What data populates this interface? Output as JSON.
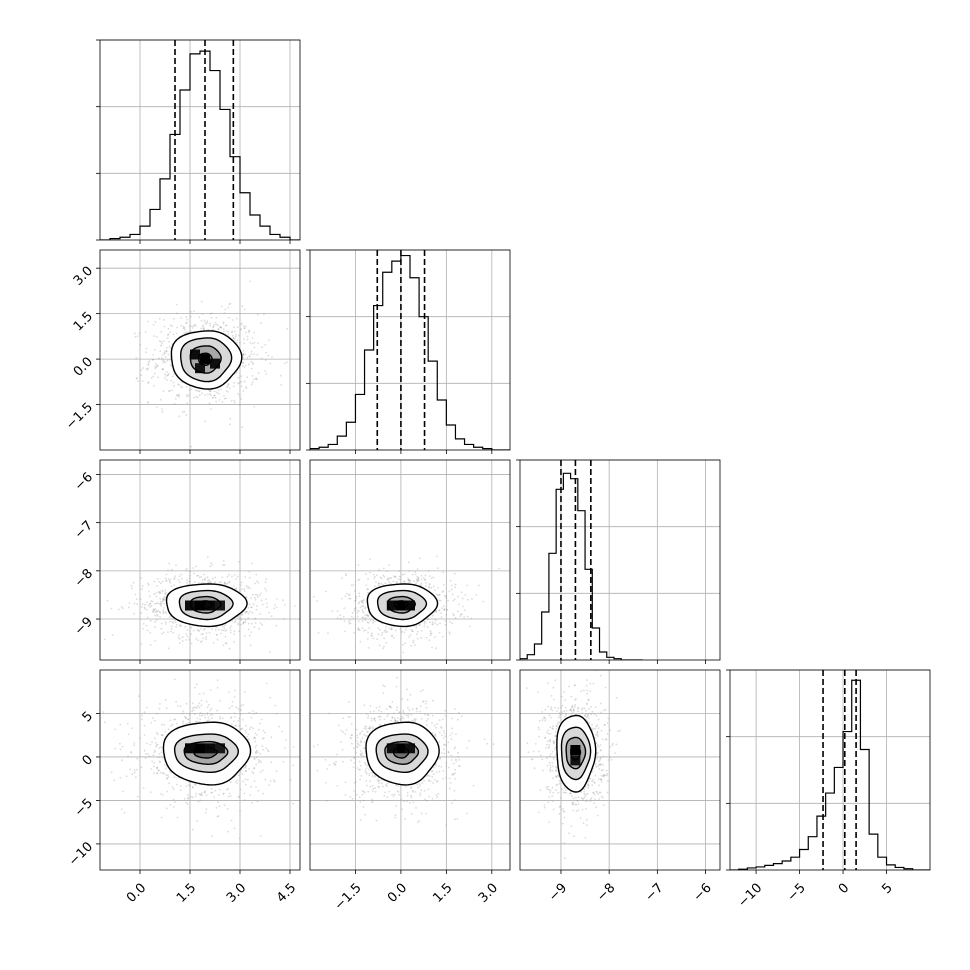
{
  "chart_data": {
    "type": "corner",
    "grid": true,
    "params": [
      {
        "range": [
          -1.2,
          4.8
        ],
        "ticks": [
          0.0,
          1.5,
          3.0,
          4.5
        ],
        "tick_labels": [
          "0.0",
          "1.5",
          "3.0",
          "4.5"
        ],
        "quantiles": [
          1.05,
          1.95,
          2.8
        ],
        "center": 1.95,
        "sigma": 0.85
      },
      {
        "range": [
          -3.0,
          3.6
        ],
        "ticks": [
          -1.5,
          0.0,
          1.5,
          3.0
        ],
        "tick_labels": [
          "−1.5",
          "0.0",
          "1.5",
          "3.0"
        ],
        "quantiles": [
          -0.78,
          0.0,
          0.78
        ],
        "center": 0.0,
        "sigma": 0.78
      },
      {
        "range": [
          -9.85,
          -5.7
        ],
        "ticks": [
          -9,
          -8,
          -7,
          -6
        ],
        "tick_labels": [
          "−9",
          "−8",
          "−7",
          "−6"
        ],
        "quantiles": [
          -9.0,
          -8.7,
          -8.38
        ],
        "center": -8.7,
        "sigma": 0.3
      },
      {
        "range": [
          -13.0,
          10.0
        ],
        "ticks": [
          -10,
          -5,
          0,
          5
        ],
        "tick_labels": [
          "−10",
          "−5",
          "0",
          "5"
        ],
        "quantiles": [
          -2.3,
          0.2,
          1.5
        ],
        "center": 0.5,
        "sigma": 2.2
      }
    ],
    "histograms": [
      {
        "param": 0,
        "bin_edges": [
          -1.2,
          -0.9,
          -0.6,
          -0.3,
          0.0,
          0.3,
          0.6,
          0.9,
          1.2,
          1.5,
          1.8,
          2.1,
          2.4,
          2.7,
          3.0,
          3.3,
          3.6,
          3.9,
          4.2,
          4.5,
          4.8
        ],
        "counts": [
          0,
          0.5,
          1,
          2,
          5,
          11,
          22,
          38,
          54,
          67,
          68,
          61,
          47,
          30,
          17,
          9,
          5,
          2,
          1,
          0
        ],
        "ymax": 72
      },
      {
        "param": 1,
        "bin_edges": [
          -3.0,
          -2.7,
          -2.4,
          -2.1,
          -1.8,
          -1.5,
          -1.2,
          -0.9,
          -0.6,
          -0.3,
          0.0,
          0.3,
          0.6,
          0.9,
          1.2,
          1.5,
          1.8,
          2.1,
          2.4,
          2.7,
          3.0,
          3.3,
          3.6
        ],
        "counts": [
          0.5,
          1,
          2,
          5,
          10,
          20,
          36,
          52,
          64,
          68,
          70,
          62,
          48,
          32,
          18,
          9,
          4,
          2,
          1,
          0.5,
          0,
          0
        ],
        "ymax": 72
      },
      {
        "param": 2,
        "bin_edges": [
          -9.85,
          -9.7,
          -9.55,
          -9.4,
          -9.25,
          -9.1,
          -8.95,
          -8.8,
          -8.65,
          -8.5,
          -8.35,
          -8.2,
          -8.05,
          -7.9,
          -7.75,
          -7.6,
          -7.45,
          -7.3
        ],
        "counts": [
          0.5,
          2,
          6,
          18,
          40,
          64,
          70,
          68,
          56,
          34,
          12,
          3,
          1,
          0.5,
          0,
          0,
          0
        ],
        "ymax": 75
      },
      {
        "param": 3,
        "bin_edges": [
          -13,
          -12,
          -11,
          -10,
          -9,
          -8,
          -7,
          -6,
          -5,
          -4,
          -3,
          -2,
          -1,
          0,
          1,
          2,
          3,
          4,
          5,
          6,
          7,
          8,
          9,
          10
        ],
        "counts": [
          0,
          0.3,
          0.8,
          1.2,
          1.8,
          2.5,
          3.5,
          5,
          8,
          13,
          21,
          30,
          40,
          54,
          74,
          47,
          14,
          5,
          2,
          1,
          0.5,
          0,
          0
        ],
        "ymax": 78
      }
    ],
    "panels_2d": [
      {
        "row": 1,
        "col": 0,
        "levels": [
          {
            "sx": 1.05,
            "sy": 0.96
          },
          {
            "sx": 0.76,
            "sy": 0.72
          },
          {
            "sx": 0.46,
            "sy": 0.45
          },
          {
            "sx": 0.2,
            "sy": 0.2
          }
        ],
        "skew": 0.06,
        "cells": [
          [
            1.95,
            0.0,
            1.0
          ],
          [
            1.65,
            0.15,
            0.8
          ],
          [
            2.25,
            -0.15,
            0.75
          ],
          [
            1.8,
            -0.3,
            0.7
          ]
        ]
      },
      {
        "row": 2,
        "col": 0,
        "levels": [
          {
            "sx": 1.2,
            "sy": 0.44
          },
          {
            "sx": 0.8,
            "sy": 0.3
          },
          {
            "sx": 0.45,
            "sy": 0.17
          },
          {
            "sx": 0.22,
            "sy": 0.08
          }
        ],
        "skew": 0.05,
        "cells": [
          [
            1.8,
            -8.72,
            1.0
          ],
          [
            2.1,
            -8.72,
            0.85
          ],
          [
            1.5,
            -8.72,
            0.8
          ],
          [
            2.4,
            -8.72,
            0.6
          ]
        ]
      },
      {
        "row": 2,
        "col": 1,
        "levels": [
          {
            "sx": 1.15,
            "sy": 0.44
          },
          {
            "sx": 0.8,
            "sy": 0.3
          },
          {
            "sx": 0.45,
            "sy": 0.17
          },
          {
            "sx": 0.22,
            "sy": 0.08
          }
        ],
        "skew": 0.05,
        "cells": [
          [
            0.0,
            -8.72,
            1.0
          ],
          [
            0.3,
            -8.72,
            0.85
          ],
          [
            -0.3,
            -8.72,
            0.8
          ]
        ]
      },
      {
        "row": 3,
        "col": 0,
        "levels": [
          {
            "sx": 1.3,
            "sy": 3.6
          },
          {
            "sx": 0.95,
            "sy": 2.2
          },
          {
            "sx": 0.65,
            "sy": 1.3
          },
          {
            "sx": 0.35,
            "sy": 0.6
          }
        ],
        "skew": 0.12,
        "cells": [
          [
            1.8,
            1.0,
            1.0
          ],
          [
            1.5,
            1.0,
            0.85
          ],
          [
            2.1,
            1.0,
            0.85
          ],
          [
            2.4,
            1.0,
            0.6
          ]
        ]
      },
      {
        "row": 3,
        "col": 1,
        "levels": [
          {
            "sx": 1.2,
            "sy": 3.6
          },
          {
            "sx": 0.85,
            "sy": 2.2
          },
          {
            "sx": 0.55,
            "sy": 1.3
          },
          {
            "sx": 0.25,
            "sy": 0.6
          }
        ],
        "skew": 0.1,
        "cells": [
          [
            0.0,
            1.0,
            1.0
          ],
          [
            0.3,
            1.0,
            0.75
          ],
          [
            -0.3,
            1.0,
            0.75
          ]
        ]
      },
      {
        "row": 3,
        "col": 2,
        "levels": [
          {
            "sx": 0.4,
            "sy": 4.4
          },
          {
            "sx": 0.3,
            "sy": 3.0
          },
          {
            "sx": 0.2,
            "sy": 1.8
          },
          {
            "sx": 0.1,
            "sy": 0.8
          }
        ],
        "skew": 0.0,
        "cells": [
          [
            -8.7,
            0.8,
            1.0
          ],
          [
            -8.7,
            -0.4,
            0.7
          ]
        ]
      }
    ]
  }
}
